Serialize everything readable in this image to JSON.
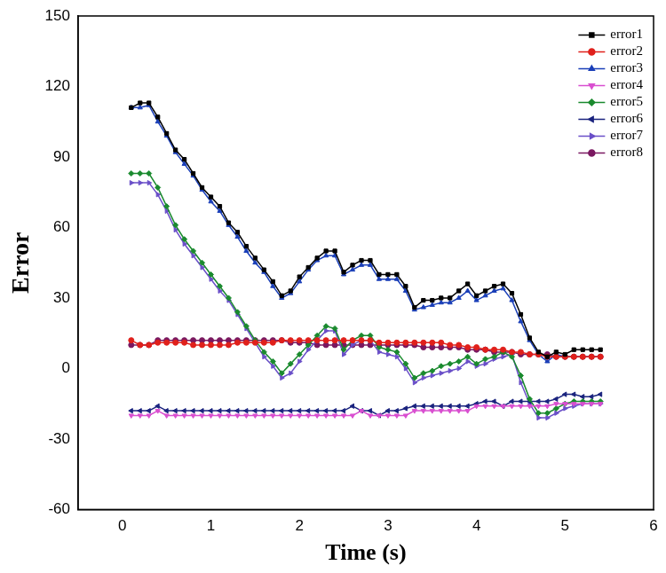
{
  "chart_data": {
    "type": "line",
    "x_label": "Time (s)",
    "y_label": "Error",
    "xlim": [
      -0.5,
      6
    ],
    "xticks": [
      0,
      1,
      2,
      3,
      4,
      5,
      6
    ],
    "ylim": [
      -60,
      150
    ],
    "yticks": [
      -60,
      -30,
      0,
      30,
      60,
      90,
      120,
      150
    ],
    "grid": false,
    "legend": "top-right",
    "x": [
      0.1,
      0.2,
      0.3,
      0.4,
      0.5,
      0.6,
      0.7,
      0.8,
      0.9,
      1.0,
      1.1,
      1.2,
      1.3,
      1.4,
      1.5,
      1.6,
      1.7,
      1.8,
      1.9,
      2.0,
      2.1,
      2.2,
      2.3,
      2.4,
      2.5,
      2.6,
      2.7,
      2.8,
      2.9,
      3.0,
      3.1,
      3.2,
      3.3,
      3.4,
      3.5,
      3.6,
      3.7,
      3.8,
      3.9,
      4.0,
      4.1,
      4.2,
      4.3,
      4.4,
      4.5,
      4.6,
      4.7,
      4.8,
      4.9,
      5.0,
      5.1,
      5.2,
      5.3,
      5.4
    ],
    "series": [
      {
        "name": "error1",
        "color": "#000000",
        "marker": "square",
        "line_style": "solid",
        "values": [
          111,
          113,
          113,
          107,
          100,
          93,
          89,
          83,
          77,
          73,
          69,
          62,
          58,
          52,
          47,
          42,
          37,
          31,
          33,
          39,
          43,
          47,
          50,
          50,
          41,
          44,
          46,
          46,
          40,
          40,
          40,
          35,
          26,
          29,
          29,
          30,
          30,
          33,
          36,
          31,
          33,
          35,
          36,
          32,
          23,
          13,
          7,
          5,
          7,
          6,
          8,
          8,
          8,
          8
        ]
      },
      {
        "name": "error2",
        "color": "#e0201b",
        "marker": "circle",
        "line_style": "solid",
        "values": [
          12,
          10,
          10,
          11,
          11,
          11,
          11,
          10,
          10,
          10,
          10,
          10,
          11,
          11,
          11,
          11,
          11,
          12,
          12,
          12,
          12,
          12,
          12,
          12,
          12,
          12,
          12,
          12,
          11,
          11,
          11,
          11,
          11,
          11,
          11,
          11,
          10,
          10,
          9,
          9,
          8,
          8,
          8,
          7,
          7,
          6,
          6,
          5,
          5,
          5,
          5,
          5,
          5,
          5
        ]
      },
      {
        "name": "error3",
        "color": "#1a3fb8",
        "marker": "triangle-up",
        "line_style": "solid",
        "values": [
          111,
          111,
          112,
          105,
          99,
          92,
          87,
          82,
          76,
          71,
          67,
          61,
          56,
          50,
          45,
          41,
          35,
          30,
          32,
          37,
          42,
          46,
          48,
          48,
          40,
          42,
          44,
          44,
          38,
          38,
          38,
          33,
          25,
          26,
          27,
          28,
          28,
          30,
          33,
          29,
          31,
          33,
          34,
          29,
          20,
          12,
          6,
          3,
          6,
          5,
          5,
          5,
          5,
          5
        ]
      },
      {
        "name": "error4",
        "color": "#d94fd0",
        "marker": "triangle-down",
        "line_style": "solid",
        "values": [
          -20,
          -20,
          -20,
          -18,
          -20,
          -20,
          -20,
          -20,
          -20,
          -20,
          -20,
          -20,
          -20,
          -20,
          -20,
          -20,
          -20,
          -20,
          -20,
          -20,
          -20,
          -20,
          -20,
          -20,
          -20,
          -20,
          -18,
          -20,
          -20,
          -20,
          -20,
          -20,
          -18,
          -18,
          -18,
          -18,
          -18,
          -18,
          -18,
          -16,
          -16,
          -16,
          -16,
          -16,
          -16,
          -16,
          -16,
          -16,
          -15,
          -15,
          -15,
          -15,
          -15,
          -15
        ]
      },
      {
        "name": "error5",
        "color": "#1a8a2e",
        "marker": "diamond",
        "line_style": "solid",
        "values": [
          83,
          83,
          83,
          77,
          69,
          61,
          55,
          50,
          45,
          40,
          35,
          30,
          24,
          18,
          12,
          7,
          3,
          -2,
          2,
          6,
          10,
          14,
          18,
          17,
          8,
          12,
          14,
          14,
          9,
          8,
          7,
          2,
          -4,
          -2,
          -1,
          1,
          2,
          3,
          5,
          2,
          4,
          5,
          7,
          5,
          -3,
          -13,
          -19,
          -19,
          -17,
          -15,
          -14,
          -14,
          -14,
          -14
        ]
      },
      {
        "name": "error6",
        "color": "#1a237e",
        "marker": "triangle-left",
        "line_style": "solid",
        "values": [
          -18,
          -18,
          -18,
          -16,
          -18,
          -18,
          -18,
          -18,
          -18,
          -18,
          -18,
          -18,
          -18,
          -18,
          -18,
          -18,
          -18,
          -18,
          -18,
          -18,
          -18,
          -18,
          -18,
          -18,
          -18,
          -16,
          -18,
          -18,
          -20,
          -18,
          -18,
          -17,
          -16,
          -16,
          -16,
          -16,
          -16,
          -16,
          -16,
          -15,
          -14,
          -14,
          -16,
          -14,
          -14,
          -14,
          -14,
          -14,
          -13,
          -11,
          -11,
          -12,
          -12,
          -11
        ]
      },
      {
        "name": "error7",
        "color": "#6a4fc8",
        "marker": "triangle-right",
        "line_style": "solid",
        "values": [
          79,
          79,
          79,
          74,
          67,
          59,
          53,
          48,
          43,
          38,
          33,
          29,
          23,
          17,
          11,
          5,
          1,
          -4,
          -2,
          3,
          8,
          12,
          16,
          16,
          6,
          10,
          12,
          12,
          7,
          6,
          5,
          0,
          -6,
          -4,
          -3,
          -2,
          -1,
          0,
          3,
          1,
          2,
          4,
          5,
          6,
          -6,
          -15,
          -21,
          -21,
          -19,
          -17,
          -16,
          -15,
          -15,
          -15
        ]
      },
      {
        "name": "error8",
        "color": "#7a1860",
        "marker": "hexagon",
        "line_style": "solid",
        "values": [
          10,
          10,
          10,
          12,
          12,
          12,
          12,
          12,
          12,
          12,
          12,
          12,
          12,
          12,
          12,
          12,
          12,
          12,
          11,
          11,
          11,
          10,
          10,
          10,
          10,
          10,
          10,
          10,
          10,
          10,
          10,
          10,
          10,
          9,
          9,
          9,
          9,
          9,
          8,
          8,
          8,
          7,
          7,
          7,
          6,
          6,
          6,
          6,
          5,
          5,
          5,
          5,
          5,
          5
        ]
      }
    ]
  }
}
